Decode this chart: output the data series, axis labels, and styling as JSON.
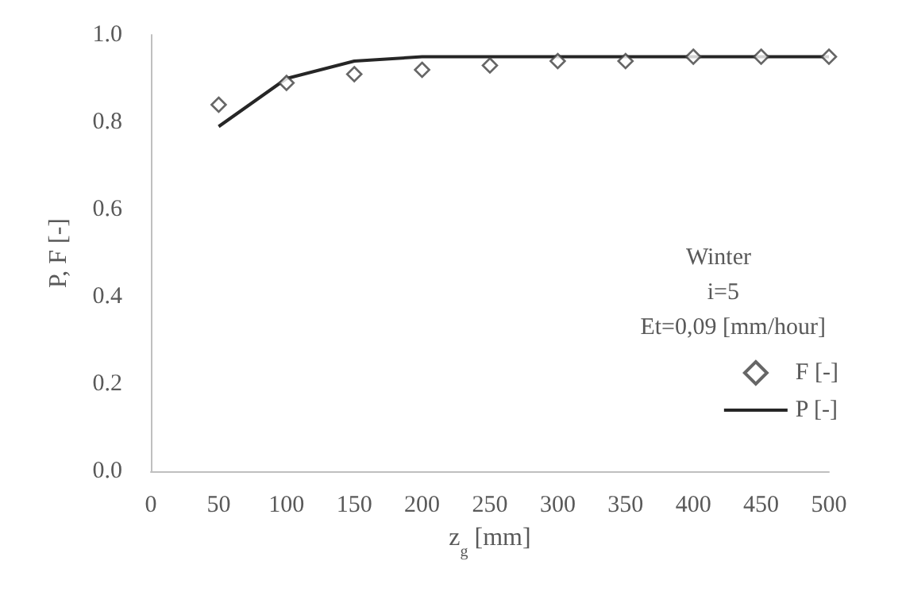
{
  "chart_data": {
    "type": "line",
    "xlabel": "z$_{g}$ [mm]",
    "ylabel": "P, F [-]",
    "x": [
      50,
      100,
      150,
      200,
      250,
      300,
      350,
      400,
      450,
      500
    ],
    "series": [
      {
        "name": "F [-]",
        "type": "scatter",
        "color": "#404040",
        "marker": "diamond",
        "values": [
          0.84,
          0.89,
          0.91,
          0.92,
          0.93,
          0.94,
          0.94,
          0.95,
          0.95,
          0.95
        ]
      },
      {
        "name": "P [-]",
        "color": "#262626",
        "marker": "none",
        "line_style": "solid",
        "values": [
          0.79,
          0.9,
          0.94,
          0.95,
          0.95,
          0.95,
          0.95,
          0.95,
          0.95,
          0.95
        ]
      }
    ],
    "annotations": [
      "Winter",
      "i=5",
      "Et=0,09 [mm/hour]"
    ],
    "xlim": [
      0,
      500
    ],
    "xticks": [
      0,
      50,
      100,
      150,
      200,
      250,
      300,
      350,
      400,
      450,
      500
    ],
    "ylim": [
      0,
      1
    ],
    "yticks": [
      {
        "value": 0,
        "label": "0.0"
      },
      {
        "value": 0.2,
        "label": "0.2"
      },
      {
        "value": 0.4,
        "label": "0.4"
      },
      {
        "value": 0.6,
        "label": "0.6"
      },
      {
        "value": 0.8,
        "label": "0.8"
      },
      {
        "value": 1,
        "label": "1.0"
      }
    ],
    "grid": false,
    "legend": "right"
  }
}
